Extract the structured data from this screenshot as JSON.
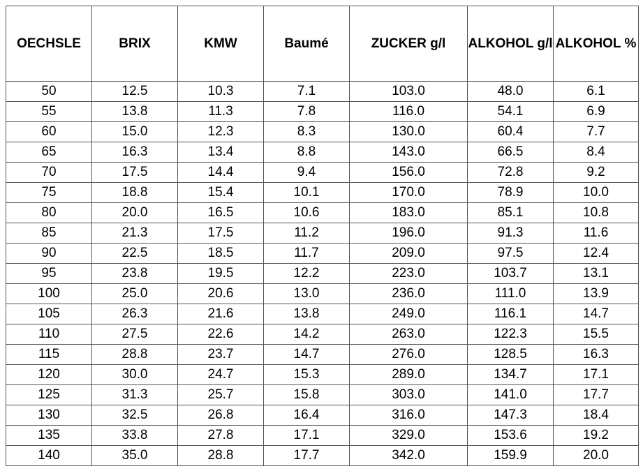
{
  "table": {
    "header": [
      "OECHSLE",
      "BRIX",
      "KMW",
      "Baumé",
      "ZUCKER g/l",
      "ALKOHOL g/l",
      "ALKOHOL %"
    ],
    "rows": [
      [
        "50",
        "12.5",
        "10.3",
        "7.1",
        "103.0",
        "48.0",
        "6.1"
      ],
      [
        "55",
        "13.8",
        "11.3",
        "7.8",
        "116.0",
        "54.1",
        "6.9"
      ],
      [
        "60",
        "15.0",
        "12.3",
        "8.3",
        "130.0",
        "60.4",
        "7.7"
      ],
      [
        "65",
        "16.3",
        "13.4",
        "8.8",
        "143.0",
        "66.5",
        "8.4"
      ],
      [
        "70",
        "17.5",
        "14.4",
        "9.4",
        "156.0",
        "72.8",
        "9.2"
      ],
      [
        "75",
        "18.8",
        "15.4",
        "10.1",
        "170.0",
        "78.9",
        "10.0"
      ],
      [
        "80",
        "20.0",
        "16.5",
        "10.6",
        "183.0",
        "85.1",
        "10.8"
      ],
      [
        "85",
        "21.3",
        "17.5",
        "11.2",
        "196.0",
        "91.3",
        "11.6"
      ],
      [
        "90",
        "22.5",
        "18.5",
        "11.7",
        "209.0",
        "97.5",
        "12.4"
      ],
      [
        "95",
        "23.8",
        "19.5",
        "12.2",
        "223.0",
        "103.7",
        "13.1"
      ],
      [
        "100",
        "25.0",
        "20.6",
        "13.0",
        "236.0",
        "111.0",
        "13.9"
      ],
      [
        "105",
        "26.3",
        "21.6",
        "13.8",
        "249.0",
        "116.1",
        "14.7"
      ],
      [
        "110",
        "27.5",
        "22.6",
        "14.2",
        "263.0",
        "122.3",
        "15.5"
      ],
      [
        "115",
        "28.8",
        "23.7",
        "14.7",
        "276.0",
        "128.5",
        "16.3"
      ],
      [
        "120",
        "30.0",
        "24.7",
        "15.3",
        "289.0",
        "134.7",
        "17.1"
      ],
      [
        "125",
        "31.3",
        "25.7",
        "15.8",
        "303.0",
        "141.0",
        "17.7"
      ],
      [
        "130",
        "32.5",
        "26.8",
        "16.4",
        "316.0",
        "147.3",
        "18.4"
      ],
      [
        "135",
        "33.8",
        "27.8",
        "17.1",
        "329.0",
        "153.6",
        "19.2"
      ],
      [
        "140",
        "35.0",
        "28.8",
        "17.7",
        "342.0",
        "159.9",
        "20.0"
      ]
    ]
  }
}
